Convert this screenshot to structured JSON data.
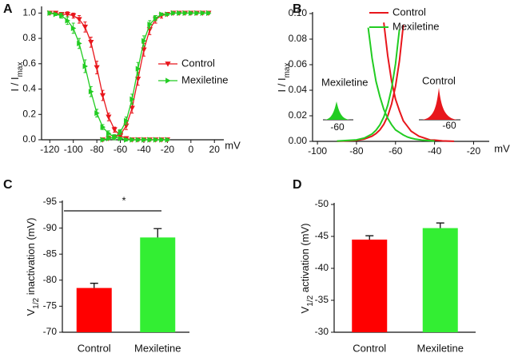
{
  "chart_data": [
    {
      "type": "line",
      "panel": "A",
      "xlabel": "mV",
      "ylabel": [
        {
          "text": "I / I"
        },
        {
          "text": "max",
          "sub": true
        }
      ],
      "xlim": [
        -127,
        28
      ],
      "xticks": [
        -120,
        -100,
        -80,
        -60,
        -40,
        -20,
        0,
        20
      ],
      "ylim": [
        0,
        1.04
      ],
      "yticks": [
        {
          "value": 0,
          "label": "0.0"
        },
        {
          "value": 0.2,
          "label": "0.2"
        },
        {
          "value": 0.4,
          "label": "0.4"
        },
        {
          "value": 0.6,
          "label": "0.6"
        },
        {
          "value": 0.8,
          "label": "0.8"
        },
        {
          "value": 1.0,
          "label": "1.0"
        }
      ],
      "series": [
        {
          "name": "Control",
          "color": "#e8161c",
          "marker": "triangle-down",
          "curves": [
            {
              "x": [
                -120,
                -115,
                -110,
                -105,
                -100,
                -95,
                -90,
                -85,
                -80,
                -75,
                -70,
                -65,
                -60,
                -55,
                -50,
                -45,
                -40,
                -35,
                -30,
                -25,
                -20
              ],
              "values": [
                1.0,
                1.0,
                0.99,
                0.99,
                0.98,
                0.95,
                0.89,
                0.77,
                0.57,
                0.35,
                0.18,
                0.08,
                0.03,
                0.01,
                0,
                0,
                0,
                0,
                0,
                0,
                0
              ],
              "errors": [
                0.01,
                0.01,
                0.01,
                0.02,
                0.02,
                0.03,
                0.04,
                0.04,
                0.05,
                0.04,
                0.03,
                0.02,
                0.01,
                0.01,
                0.01,
                0.01,
                0.01,
                0.01,
                0.01,
                0.01,
                0.01
              ]
            },
            {
              "x": [
                -75,
                -70,
                -65,
                -60,
                -55,
                -50,
                -45,
                -40,
                -35,
                -30,
                -25,
                -20,
                -15,
                -10,
                -5,
                0,
                5,
                10,
                15
              ],
              "values": [
                0,
                0.01,
                0.02,
                0.04,
                0.11,
                0.25,
                0.48,
                0.71,
                0.87,
                0.95,
                0.98,
                0.99,
                1.0,
                1.0,
                1.0,
                1.0,
                1.0,
                1.0,
                1.0
              ],
              "errors": [
                0.01,
                0.01,
                0.01,
                0.02,
                0.03,
                0.04,
                0.05,
                0.05,
                0.04,
                0.03,
                0.02,
                0.01,
                0.01,
                0.01,
                0.01,
                0.01,
                0.01,
                0.01,
                0.01
              ]
            }
          ]
        },
        {
          "name": "Mexiletine",
          "color": "#22cc22",
          "marker": "triangle-right",
          "curves": [
            {
              "x": [
                -120,
                -115,
                -110,
                -105,
                -100,
                -95,
                -90,
                -85,
                -80,
                -75,
                -70,
                -65,
                -60,
                -55,
                -50,
                -45,
                -40,
                -35,
                -30,
                -25,
                -20
              ],
              "values": [
                1.0,
                0.99,
                0.98,
                0.94,
                0.88,
                0.76,
                0.58,
                0.38,
                0.21,
                0.1,
                0.05,
                0.02,
                0.01,
                0,
                0,
                0,
                0,
                0,
                0,
                0,
                0
              ],
              "errors": [
                0.01,
                0.01,
                0.02,
                0.03,
                0.04,
                0.04,
                0.05,
                0.04,
                0.03,
                0.02,
                0.02,
                0.02,
                0.01,
                0.01,
                0.01,
                0.01,
                0.01,
                0.01,
                0.01,
                0.01,
                0.01
              ]
            },
            {
              "x": [
                -75,
                -70,
                -65,
                -60,
                -55,
                -50,
                -45,
                -40,
                -35,
                -30,
                -25,
                -20,
                -15,
                -10,
                -5,
                0,
                5,
                10,
                15
              ],
              "values": [
                0,
                0.01,
                0.02,
                0.06,
                0.15,
                0.32,
                0.56,
                0.78,
                0.91,
                0.96,
                0.99,
                0.99,
                1.0,
                1.0,
                1.0,
                1.0,
                1.0,
                1.0,
                1.0
              ],
              "errors": [
                0.01,
                0.01,
                0.01,
                0.02,
                0.03,
                0.04,
                0.05,
                0.04,
                0.03,
                0.02,
                0.01,
                0.01,
                0.01,
                0.01,
                0.01,
                0.01,
                0.01,
                0.01,
                0.01
              ]
            }
          ]
        }
      ]
    },
    {
      "type": "line",
      "panel": "B",
      "xlabel": "mV",
      "ylabel": [
        {
          "text": "I / I"
        },
        {
          "text": "max",
          "sub": true
        }
      ],
      "xlim": [
        -102.5,
        -12
      ],
      "xticks": [
        -100,
        -80,
        -60,
        -40,
        -20
      ],
      "ylim": [
        0,
        0.1
      ],
      "yticks": [
        {
          "value": 0,
          "label": "0.00"
        },
        {
          "value": 0.02,
          "label": "0.02"
        },
        {
          "value": 0.04,
          "label": "0.04"
        },
        {
          "value": 0.06,
          "label": "0.06"
        },
        {
          "value": 0.08,
          "label": "0.08"
        },
        {
          "value": 0.1,
          "label": "0.10"
        }
      ],
      "series": [
        {
          "name": "Control",
          "color": "#e8161c",
          "curves": [
            {
              "x": [
                -66,
                -64,
                -62,
                -60,
                -58,
                -56,
                -54,
                -52,
                -50,
                -48,
                -46,
                -44,
                -42,
                -40,
                -36,
                -30
              ],
              "values": [
                0.093,
                0.067,
                0.047,
                0.033,
                0.024,
                0.016,
                0.012,
                0.008,
                0.006,
                0.004,
                0.003,
                0.002,
                0.001,
                0.001,
                0.0004,
                0.0001
              ]
            },
            {
              "x": [
                -90,
                -80,
                -76,
                -72,
                -70,
                -68,
                -66,
                -64,
                -62,
                -60,
                -58,
                -56
              ],
              "values": [
                0.0001,
                0.0008,
                0.0018,
                0.0041,
                0.0061,
                0.009,
                0.0134,
                0.0198,
                0.0293,
                0.0431,
                0.063,
                0.0911
              ]
            }
          ]
        },
        {
          "name": "Mexiletine",
          "color": "#22cc22",
          "curves": [
            {
              "x": [
                -74,
                -72,
                -70,
                -68,
                -66,
                -64,
                -62,
                -60,
                -58,
                -56,
                -54,
                -52,
                -50,
                -46,
                -40
              ],
              "values": [
                0.089,
                0.065,
                0.047,
                0.035,
                0.025,
                0.018,
                0.013,
                0.009,
                0.007,
                0.005,
                0.0035,
                0.0025,
                0.0018,
                0.0009,
                0.0003
              ]
            },
            {
              "x": [
                -90,
                -80,
                -76,
                -72,
                -70,
                -68,
                -66,
                -64,
                -62,
                -60,
                -58
              ],
              "values": [
                0.0002,
                0.0012,
                0.0026,
                0.0058,
                0.0087,
                0.0129,
                0.0191,
                0.0282,
                0.0415,
                0.0606,
                0.0877
              ]
            }
          ]
        }
      ],
      "annotations": [
        {
          "text": "Mexiletine",
          "color": "#22cc22"
        },
        {
          "text": "Control",
          "color": "#e8161c"
        },
        {
          "text": "-60"
        },
        {
          "text": "-60"
        }
      ]
    },
    {
      "type": "bar",
      "panel": "C",
      "ylabel": [
        {
          "text": "V"
        },
        {
          "text": "1/2",
          "sub": true
        },
        {
          "text": " inactivation (mV)"
        }
      ],
      "categories": [
        "Control",
        "Mexiletine"
      ],
      "values": [
        -78.5,
        -88.2
      ],
      "errors": [
        0.9,
        1.7
      ],
      "colors": [
        "#ff0000",
        "#33ee33"
      ],
      "ylim": [
        -70,
        -95
      ],
      "yticks": [
        -70,
        -75,
        -80,
        -85,
        -90,
        -95
      ],
      "annotations": [
        {
          "text": "*"
        }
      ]
    },
    {
      "type": "bar",
      "panel": "D",
      "ylabel": [
        {
          "text": "V"
        },
        {
          "text": "1/2",
          "sub": true
        },
        {
          "text": " activation (mV)"
        }
      ],
      "categories": [
        "Control",
        "Mexiletine"
      ],
      "values": [
        -44.5,
        -46.3
      ],
      "errors": [
        0.6,
        0.8
      ],
      "colors": [
        "#ff0000",
        "#33ee33"
      ],
      "ylim": [
        -30,
        -50
      ],
      "yticks": [
        -30,
        -35,
        -40,
        -45,
        -50
      ]
    }
  ]
}
